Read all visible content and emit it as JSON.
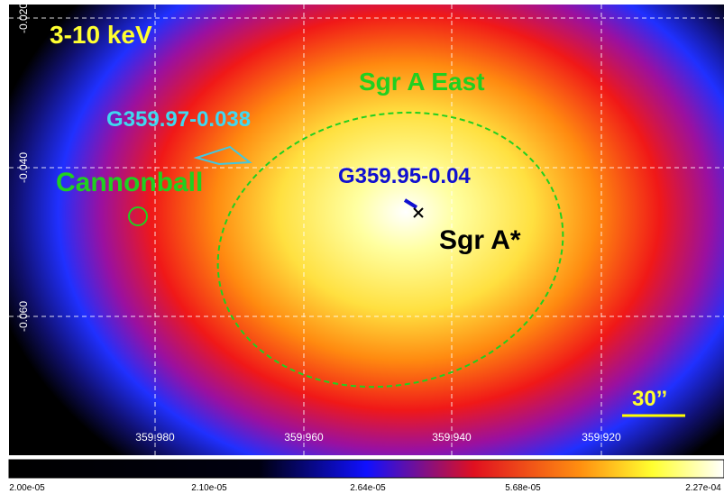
{
  "image": {
    "band_label": "3-10 keV",
    "scale_bar": "30’’",
    "annotations": {
      "sgr_a_east": "Sgr A East",
      "g359_97": "G359.97-0.038",
      "cannonball": "Cannonball",
      "g359_95": "G359.95-0.04",
      "sgr_a_star": "Sgr A*"
    },
    "x_axis_labels": [
      "359.980",
      "359.960",
      "359.940",
      "359.920"
    ],
    "y_axis_labels": [
      "-0.020",
      "-0.040",
      "-0.060"
    ]
  },
  "colorbar": {
    "labels": [
      "2.00e-05",
      "2.10e-05",
      "2.64e-05",
      "5.68e-05",
      "2.27e-04"
    ]
  }
}
